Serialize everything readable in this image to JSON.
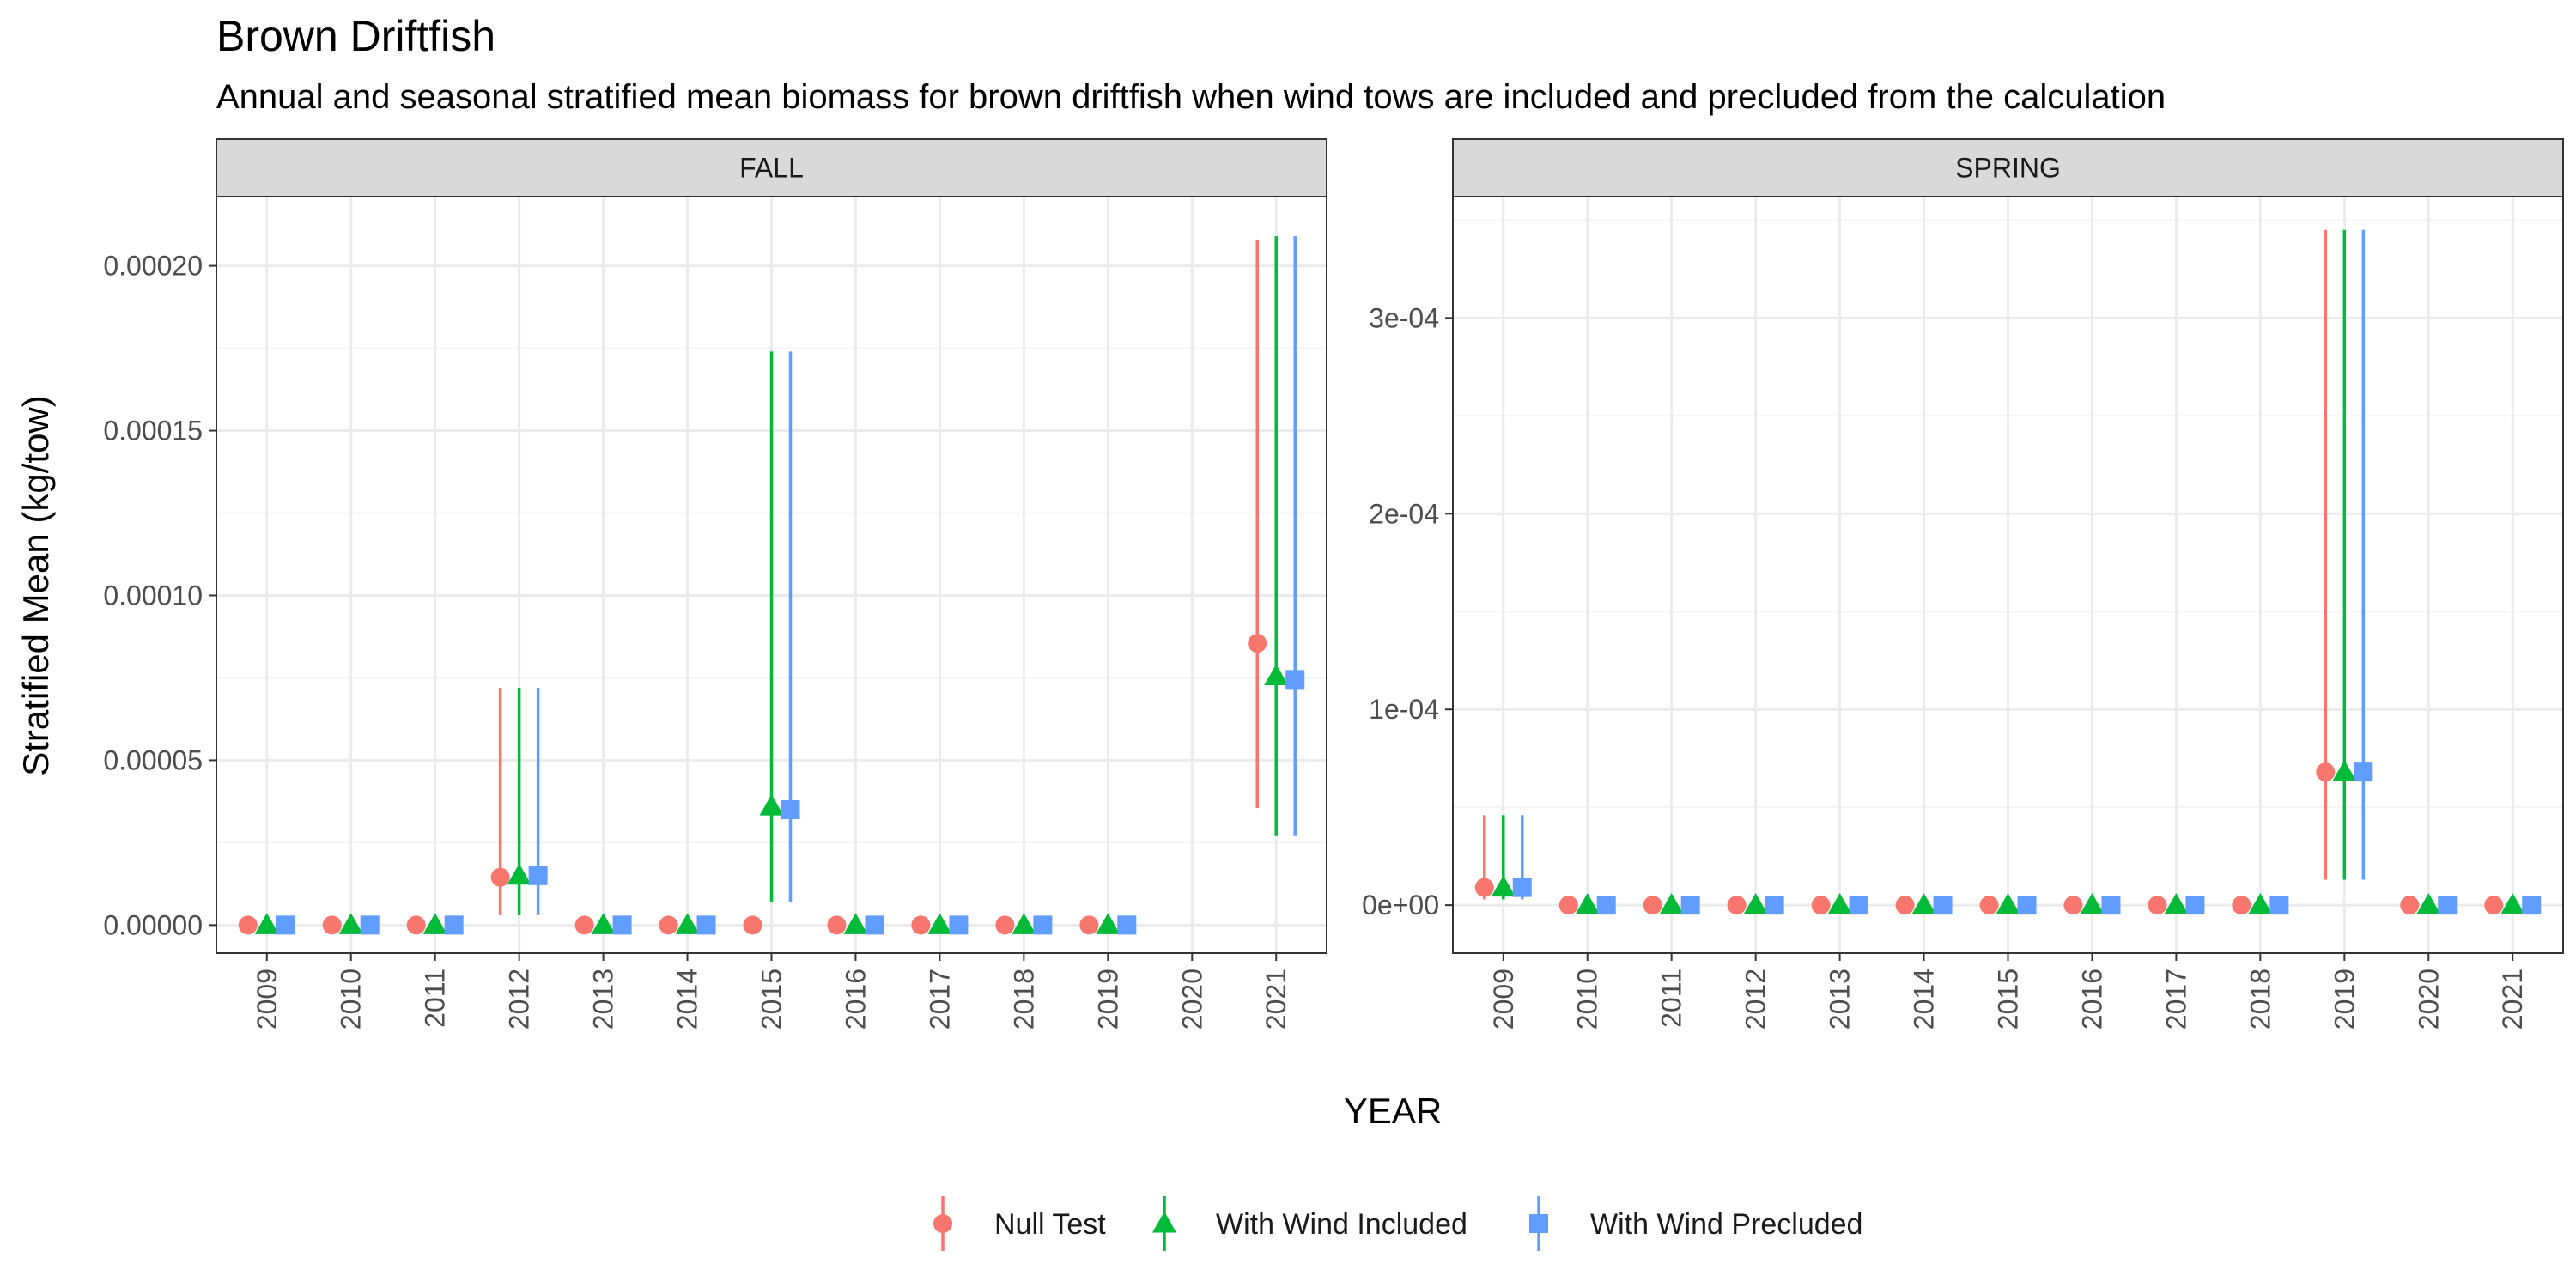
{
  "chart_data": {
    "type": "scatter",
    "title": "Brown Driftfish",
    "subtitle": "Annual and seasonal stratified mean biomass for brown driftfish when wind tows are included and precluded from the calculation",
    "xlabel": "YEAR",
    "ylabel": "Stratified Mean (kg/tow)",
    "grid": true,
    "legend_position": "bottom",
    "series": [
      {
        "name": "Null Test",
        "color": "#F8766D",
        "marker": "circle"
      },
      {
        "name": "With Wind Included",
        "color": "#00BA38",
        "marker": "triangle"
      },
      {
        "name": "With Wind Precluded",
        "color": "#619CFF",
        "marker": "square"
      }
    ],
    "panels": [
      {
        "name": "FALL",
        "categories": [
          "2009",
          "2010",
          "2011",
          "2012",
          "2013",
          "2014",
          "2015",
          "2016",
          "2017",
          "2018",
          "2019",
          "2020",
          "2021"
        ],
        "ylim": [
          -8.5e-06,
          0.000221
        ],
        "yticks": [
          0,
          5e-05,
          0.0001,
          0.00015,
          0.0002
        ],
        "ytick_labels": [
          "0.00000",
          "0.00005",
          "0.00010",
          "0.00015",
          "0.00020"
        ],
        "points": [
          {
            "x": "2009",
            "series": 0,
            "y": 0
          },
          {
            "x": "2009",
            "series": 1,
            "y": 0
          },
          {
            "x": "2009",
            "series": 2,
            "y": 0
          },
          {
            "x": "2010",
            "series": 0,
            "y": 0
          },
          {
            "x": "2010",
            "series": 1,
            "y": 0
          },
          {
            "x": "2010",
            "series": 2,
            "y": 0
          },
          {
            "x": "2011",
            "series": 0,
            "y": 0
          },
          {
            "x": "2011",
            "series": 1,
            "y": 0
          },
          {
            "x": "2011",
            "series": 2,
            "y": 0
          },
          {
            "x": "2012",
            "series": 0,
            "y": 1.45e-05,
            "lo": 3e-06,
            "hi": 7.2e-05
          },
          {
            "x": "2012",
            "series": 1,
            "y": 1.5e-05,
            "lo": 3e-06,
            "hi": 7.2e-05
          },
          {
            "x": "2012",
            "series": 2,
            "y": 1.5e-05,
            "lo": 3e-06,
            "hi": 7.2e-05
          },
          {
            "x": "2013",
            "series": 0,
            "y": 0
          },
          {
            "x": "2013",
            "series": 1,
            "y": 0
          },
          {
            "x": "2013",
            "series": 2,
            "y": 0
          },
          {
            "x": "2014",
            "series": 0,
            "y": 0
          },
          {
            "x": "2014",
            "series": 1,
            "y": 0
          },
          {
            "x": "2014",
            "series": 2,
            "y": 0
          },
          {
            "x": "2015",
            "series": 0,
            "y": 0
          },
          {
            "x": "2015",
            "series": 1,
            "y": 3.6e-05,
            "lo": 7e-06,
            "hi": 0.000174
          },
          {
            "x": "2015",
            "series": 2,
            "y": 3.5e-05,
            "lo": 7e-06,
            "hi": 0.000174
          },
          {
            "x": "2016",
            "series": 0,
            "y": 0
          },
          {
            "x": "2016",
            "series": 1,
            "y": 0
          },
          {
            "x": "2016",
            "series": 2,
            "y": 0
          },
          {
            "x": "2017",
            "series": 0,
            "y": 0
          },
          {
            "x": "2017",
            "series": 1,
            "y": 0
          },
          {
            "x": "2017",
            "series": 2,
            "y": 0
          },
          {
            "x": "2018",
            "series": 0,
            "y": 0
          },
          {
            "x": "2018",
            "series": 1,
            "y": 0
          },
          {
            "x": "2018",
            "series": 2,
            "y": 0
          },
          {
            "x": "2019",
            "series": 0,
            "y": 0
          },
          {
            "x": "2019",
            "series": 1,
            "y": 0
          },
          {
            "x": "2019",
            "series": 2,
            "y": 0
          },
          {
            "x": "2021",
            "series": 0,
            "y": 8.55e-05,
            "lo": 3.55e-05,
            "hi": 0.000208
          },
          {
            "x": "2021",
            "series": 1,
            "y": 7.55e-05,
            "lo": 2.7e-05,
            "hi": 0.000209
          },
          {
            "x": "2021",
            "series": 2,
            "y": 7.45e-05,
            "lo": 2.7e-05,
            "hi": 0.000209
          }
        ]
      },
      {
        "name": "SPRING",
        "categories": [
          "2009",
          "2010",
          "2011",
          "2012",
          "2013",
          "2014",
          "2015",
          "2016",
          "2017",
          "2018",
          "2019",
          "2020",
          "2021"
        ],
        "ylim": [
          -2.45e-05,
          0.000362
        ],
        "yticks": [
          0,
          0.0001,
          0.0002,
          0.0003
        ],
        "ytick_labels": [
          "0e+00",
          "1e-04",
          "2e-04",
          "3e-04"
        ],
        "points": [
          {
            "x": "2009",
            "series": 0,
            "y": 9e-06,
            "lo": 3e-06,
            "hi": 4.6e-05
          },
          {
            "x": "2009",
            "series": 1,
            "y": 9e-06,
            "lo": 3e-06,
            "hi": 4.6e-05
          },
          {
            "x": "2009",
            "series": 2,
            "y": 9e-06,
            "lo": 3e-06,
            "hi": 4.6e-05
          },
          {
            "x": "2010",
            "series": 0,
            "y": 0
          },
          {
            "x": "2010",
            "series": 1,
            "y": 0
          },
          {
            "x": "2010",
            "series": 2,
            "y": 0
          },
          {
            "x": "2011",
            "series": 0,
            "y": 0
          },
          {
            "x": "2011",
            "series": 1,
            "y": 0
          },
          {
            "x": "2011",
            "series": 2,
            "y": 0
          },
          {
            "x": "2012",
            "series": 0,
            "y": 0
          },
          {
            "x": "2012",
            "series": 1,
            "y": 0
          },
          {
            "x": "2012",
            "series": 2,
            "y": 0
          },
          {
            "x": "2013",
            "series": 0,
            "y": 0
          },
          {
            "x": "2013",
            "series": 1,
            "y": 0
          },
          {
            "x": "2013",
            "series": 2,
            "y": 0
          },
          {
            "x": "2014",
            "series": 0,
            "y": 0
          },
          {
            "x": "2014",
            "series": 1,
            "y": 0
          },
          {
            "x": "2014",
            "series": 2,
            "y": 0
          },
          {
            "x": "2015",
            "series": 0,
            "y": 0
          },
          {
            "x": "2015",
            "series": 1,
            "y": 0
          },
          {
            "x": "2015",
            "series": 2,
            "y": 0
          },
          {
            "x": "2016",
            "series": 0,
            "y": 0
          },
          {
            "x": "2016",
            "series": 1,
            "y": 0
          },
          {
            "x": "2016",
            "series": 2,
            "y": 0
          },
          {
            "x": "2017",
            "series": 0,
            "y": 0
          },
          {
            "x": "2017",
            "series": 1,
            "y": 0
          },
          {
            "x": "2017",
            "series": 2,
            "y": 0
          },
          {
            "x": "2018",
            "series": 0,
            "y": 0
          },
          {
            "x": "2018",
            "series": 1,
            "y": 0
          },
          {
            "x": "2018",
            "series": 2,
            "y": 0
          },
          {
            "x": "2019",
            "series": 0,
            "y": 6.8e-05,
            "lo": 1.3e-05,
            "hi": 0.000345
          },
          {
            "x": "2019",
            "series": 1,
            "y": 6.8e-05,
            "lo": 1.3e-05,
            "hi": 0.000345
          },
          {
            "x": "2019",
            "series": 2,
            "y": 6.8e-05,
            "lo": 1.3e-05,
            "hi": 0.000345
          },
          {
            "x": "2020",
            "series": 0,
            "y": 0
          },
          {
            "x": "2020",
            "series": 1,
            "y": 0
          },
          {
            "x": "2020",
            "series": 2,
            "y": 0
          },
          {
            "x": "2021",
            "series": 0,
            "y": 0
          },
          {
            "x": "2021",
            "series": 1,
            "y": 0
          },
          {
            "x": "2021",
            "series": 2,
            "y": 0
          }
        ]
      }
    ]
  }
}
